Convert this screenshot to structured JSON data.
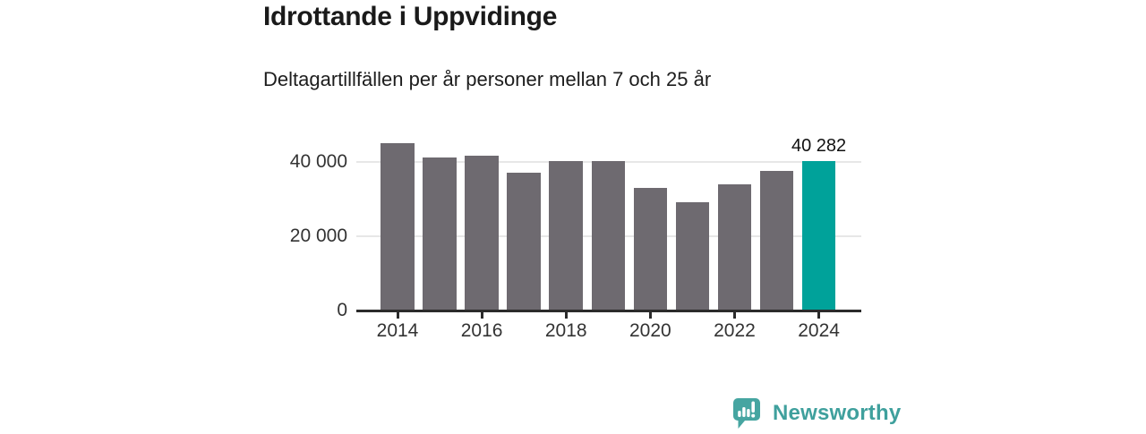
{
  "chart_data": {
    "type": "bar",
    "title": "Idrottande i Uppvidinge",
    "subtitle": "Deltagartillfällen per år personer mellan 7 och 25 år",
    "categories": [
      "2014",
      "2015",
      "2016",
      "2017",
      "2018",
      "2019",
      "2020",
      "2021",
      "2022",
      "2023",
      "2024"
    ],
    "values": [
      45100,
      41200,
      41800,
      37000,
      40300,
      40300,
      33000,
      29200,
      34100,
      37600,
      40282
    ],
    "highlight": {
      "index": 10,
      "label": "40 282",
      "color": "#00a29a"
    },
    "bar_color": "#6e6a70",
    "ylim": [
      0,
      48500
    ],
    "yticks": [
      {
        "value": 0,
        "label": "0"
      },
      {
        "value": 20000,
        "label": "20 000"
      },
      {
        "value": 40000,
        "label": "40 000"
      }
    ],
    "xticks": [
      "2014",
      "2016",
      "2018",
      "2020",
      "2022",
      "2024"
    ],
    "grid": true,
    "legend": false,
    "axis_color": "#2b2b2b",
    "gridline_color": "#e7e7e7"
  },
  "footer": {
    "brand": "Newsworthy",
    "brand_color": "#3fa09d",
    "logo_icon": "newsworthy-speech-bubble-bar-chart-icon"
  }
}
